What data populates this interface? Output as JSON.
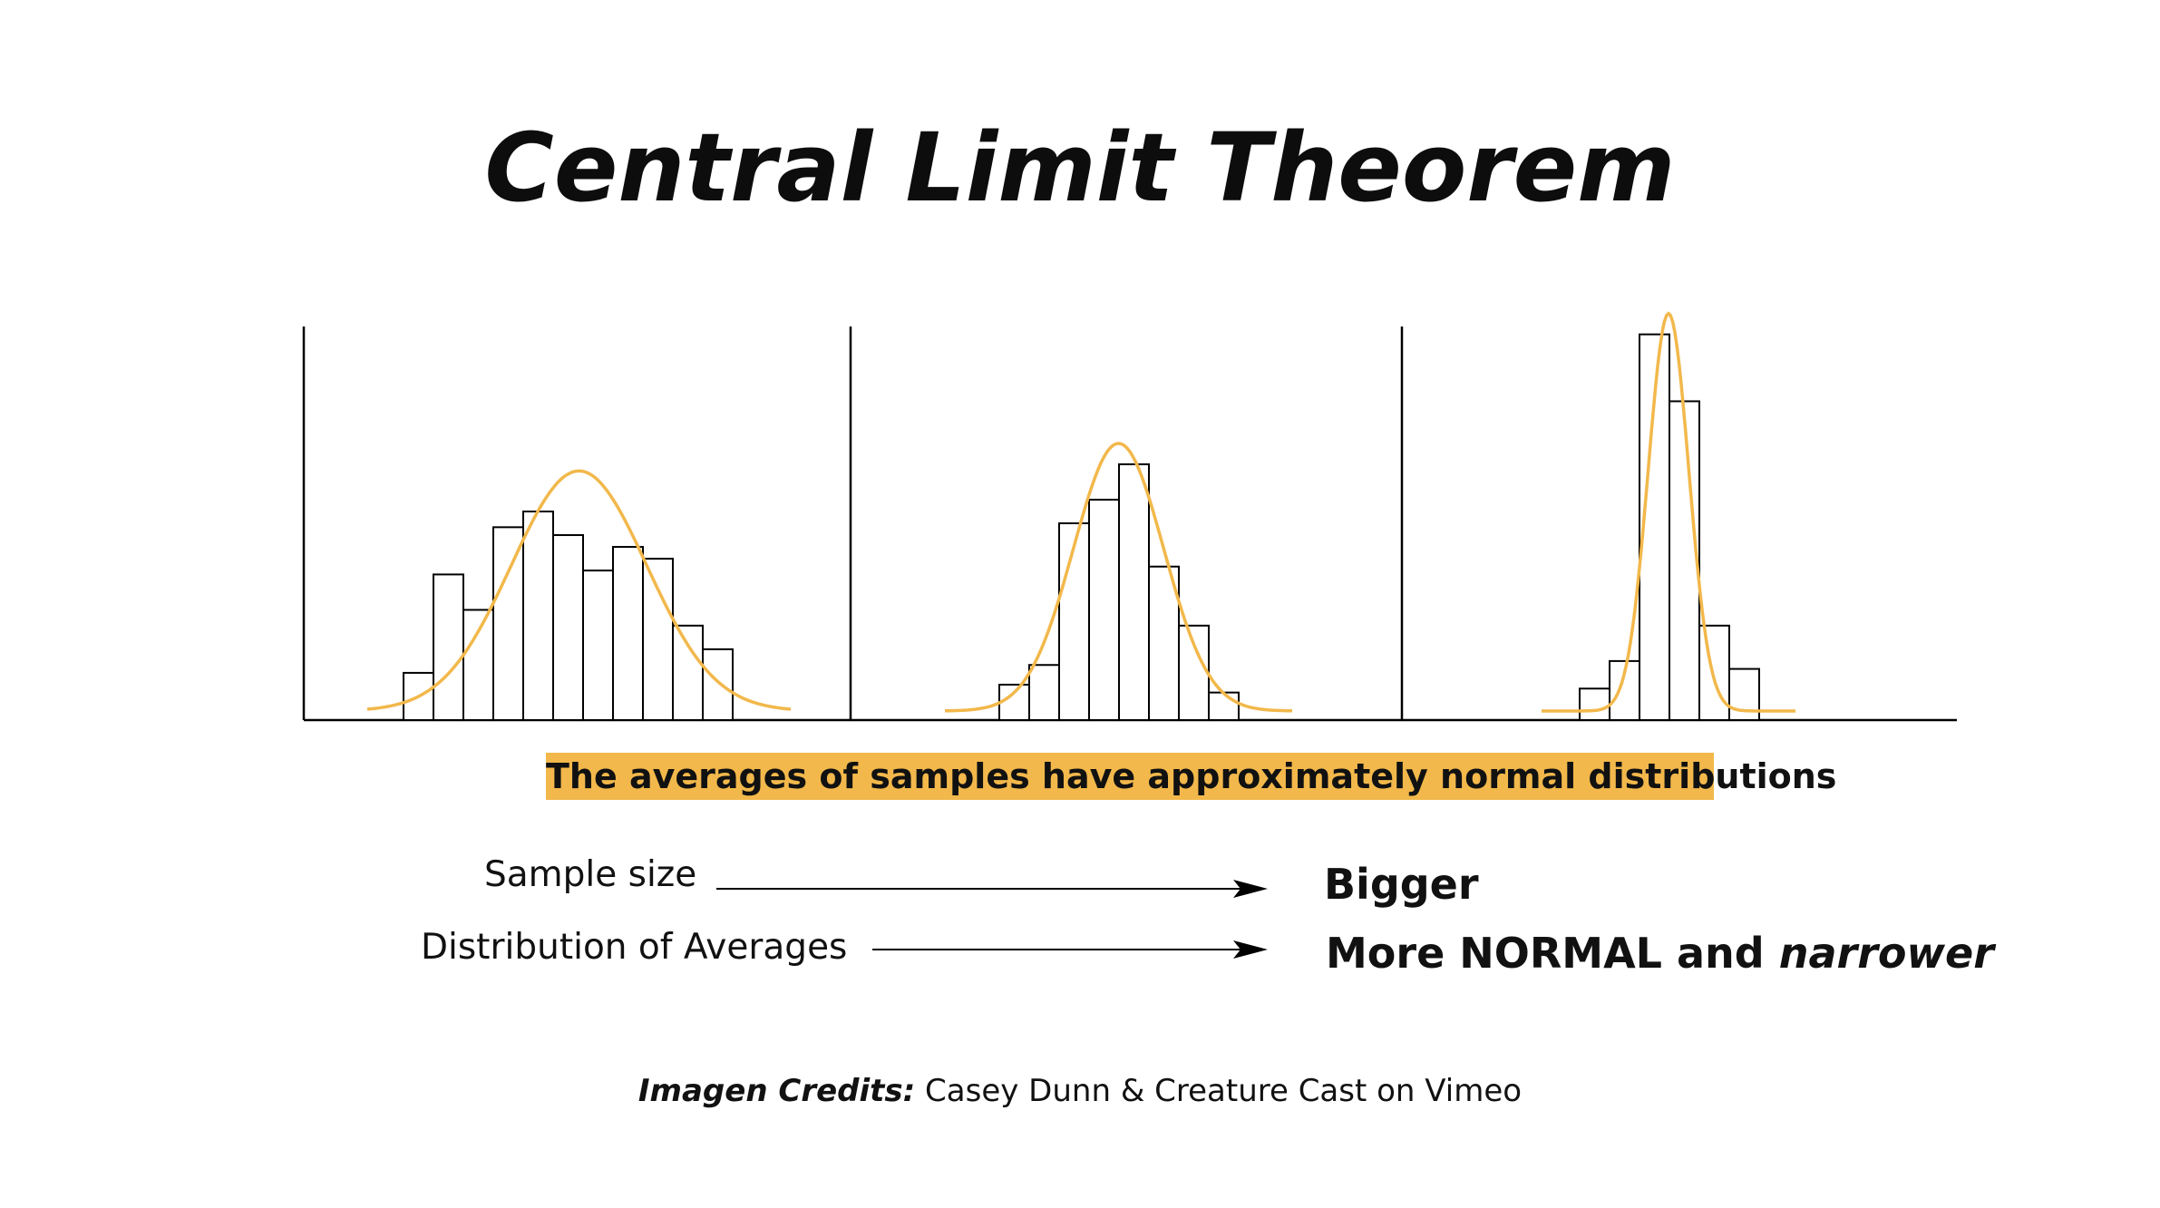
{
  "title": "Central Limit Theorem",
  "highlight_text": "The averages of samples have approximately normal distributions",
  "rows": [
    {
      "label": "Sample size",
      "result": "Bigger"
    },
    {
      "label": "Distribution of Averages",
      "result_main": "More NORMAL and ",
      "result_emph": "narrower"
    }
  ],
  "credits": {
    "label": "Imagen Credits:",
    "text": " Casey Dunn & Creature Cast on Vimeo"
  },
  "colors": {
    "curve": "#f2b84b",
    "highlight": "#f2b84b",
    "bars": "#000000"
  },
  "chart_data": {
    "type": "bar",
    "panels": [
      {
        "values": [
          0.12,
          0.37,
          0.28,
          0.49,
          0.53,
          0.47,
          0.38,
          0.44,
          0.41,
          0.24,
          0.18
        ],
        "curve_mean": 0.5,
        "curve_sd": 0.16,
        "curve_peak": 0.61
      },
      {
        "values": [
          0.09,
          0.14,
          0.5,
          0.56,
          0.65,
          0.39,
          0.24,
          0.07
        ],
        "curve_mean": 0.5,
        "curve_sd": 0.13,
        "curve_peak": 0.68
      },
      {
        "values": [
          0.08,
          0.15,
          0.98,
          0.81,
          0.24,
          0.13
        ],
        "curve_mean": 0.5,
        "curve_sd": 0.08,
        "curve_peak": 1.01
      }
    ]
  }
}
